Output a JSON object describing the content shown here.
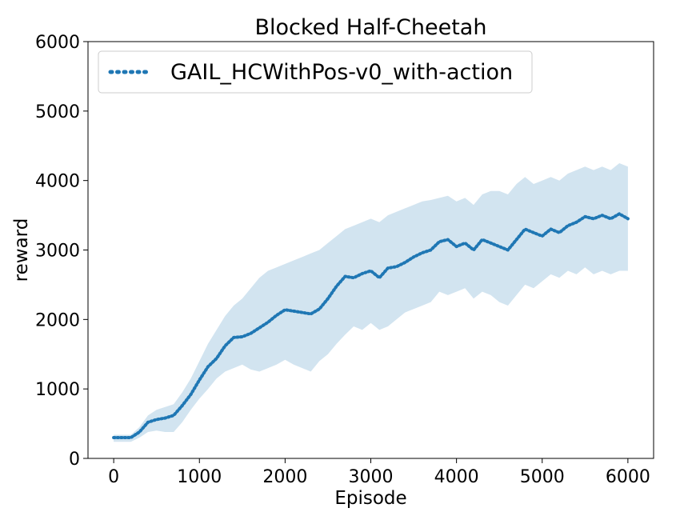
{
  "chart_data": {
    "type": "line",
    "title": "Blocked Half-Cheetah",
    "xlabel": "Episode",
    "ylabel": "reward",
    "xlim": [
      -300,
      6300
    ],
    "ylim": [
      0,
      6000
    ],
    "xticks": [
      0,
      1000,
      2000,
      3000,
      4000,
      5000,
      6000
    ],
    "yticks": [
      0,
      1000,
      2000,
      3000,
      4000,
      5000,
      6000
    ],
    "grid": false,
    "legend_position": "top-left",
    "series": [
      {
        "name": "GAIL_HCWithPos-v0_with-action",
        "color": "#1f77b4",
        "band_color": "#1f77b4",
        "line_style": "dotted",
        "x": [
          0,
          100,
          200,
          300,
          400,
          500,
          600,
          700,
          800,
          900,
          1000,
          1100,
          1200,
          1300,
          1400,
          1500,
          1600,
          1700,
          1800,
          1900,
          2000,
          2100,
          2200,
          2300,
          2400,
          2500,
          2600,
          2700,
          2800,
          2900,
          3000,
          3100,
          3200,
          3300,
          3400,
          3500,
          3600,
          3700,
          3800,
          3900,
          4000,
          4100,
          4200,
          4300,
          4400,
          4500,
          4600,
          4700,
          4800,
          4900,
          5000,
          5100,
          5200,
          5300,
          5400,
          5500,
          5600,
          5700,
          5800,
          5900,
          6000
        ],
        "y": [
          300,
          300,
          300,
          380,
          520,
          560,
          580,
          620,
          760,
          920,
          1130,
          1320,
          1440,
          1620,
          1740,
          1750,
          1800,
          1880,
          1960,
          2060,
          2140,
          2120,
          2100,
          2080,
          2150,
          2300,
          2480,
          2620,
          2600,
          2660,
          2700,
          2600,
          2740,
          2760,
          2820,
          2900,
          2960,
          3000,
          3120,
          3150,
          3050,
          3100,
          3000,
          3150,
          3100,
          3050,
          3000,
          3150,
          3300,
          3250,
          3200,
          3300,
          3250,
          3350,
          3400,
          3480,
          3450,
          3500,
          3450,
          3520,
          3450
        ],
        "lower": [
          240,
          240,
          240,
          300,
          380,
          400,
          380,
          380,
          520,
          700,
          860,
          1000,
          1150,
          1250,
          1300,
          1350,
          1280,
          1250,
          1300,
          1350,
          1420,
          1350,
          1300,
          1250,
          1400,
          1500,
          1650,
          1780,
          1900,
          1850,
          1950,
          1850,
          1900,
          2000,
          2100,
          2150,
          2200,
          2250,
          2400,
          2350,
          2400,
          2450,
          2300,
          2400,
          2350,
          2250,
          2200,
          2350,
          2500,
          2450,
          2550,
          2650,
          2600,
          2700,
          2650,
          2750,
          2650,
          2700,
          2650,
          2700,
          2700
        ],
        "upper": [
          340,
          340,
          340,
          450,
          620,
          700,
          740,
          780,
          950,
          1150,
          1400,
          1650,
          1850,
          2050,
          2200,
          2300,
          2450,
          2600,
          2700,
          2750,
          2800,
          2850,
          2900,
          2950,
          3000,
          3100,
          3200,
          3300,
          3350,
          3400,
          3450,
          3400,
          3500,
          3550,
          3600,
          3650,
          3700,
          3720,
          3750,
          3780,
          3700,
          3750,
          3650,
          3800,
          3850,
          3850,
          3800,
          3950,
          4050,
          3950,
          4000,
          4050,
          4000,
          4100,
          4150,
          4200,
          4150,
          4200,
          4150,
          4250,
          4200
        ]
      }
    ]
  }
}
